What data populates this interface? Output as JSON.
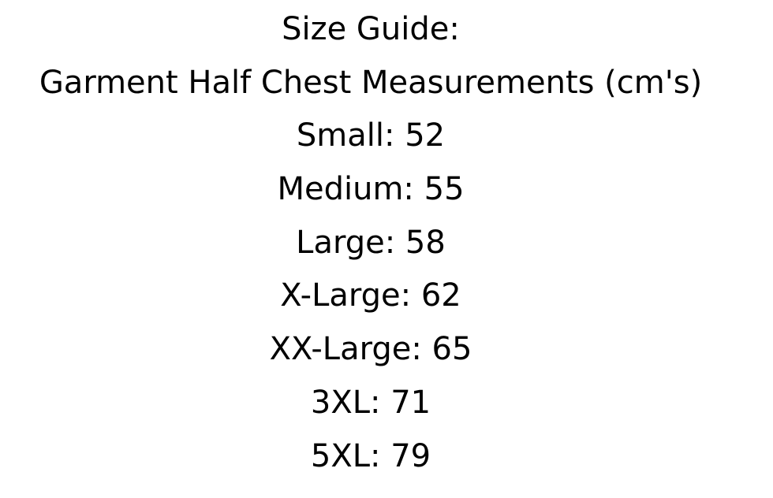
{
  "title": "Size Guide:",
  "subtitle": "Garment Half Chest Measurements (cm's)",
  "sizes": [
    {
      "label": "Small",
      "value": "52",
      "text": "Small: 52"
    },
    {
      "label": "Medium",
      "value": "55",
      "text": "Medium: 55"
    },
    {
      "label": "Large",
      "value": "58",
      "text": "Large: 58"
    },
    {
      "label": "X-Large",
      "value": "62",
      "text": "X-Large: 62"
    },
    {
      "label": "XX-Large",
      "value": "65",
      "text": "XX-Large: 65"
    },
    {
      "label": "3XL",
      "value": "71",
      "text": "3XL: 71"
    },
    {
      "label": "5XL",
      "value": "79",
      "text": "5XL: 79"
    }
  ]
}
